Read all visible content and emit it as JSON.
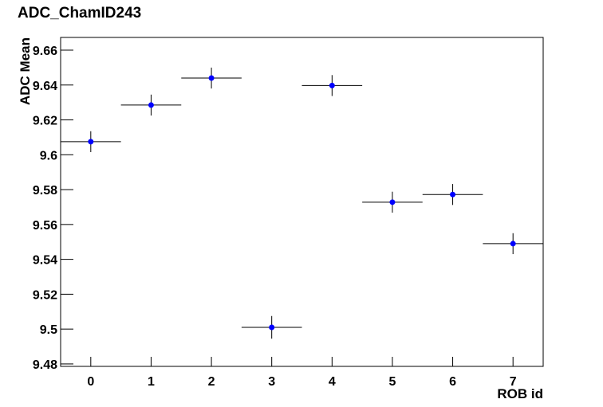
{
  "chart_data": {
    "type": "scatter",
    "title": "ADC_ChamID243",
    "x_label": "ROB id",
    "y_label": "ADC Mean",
    "x": [
      0,
      1,
      2,
      3,
      4,
      5,
      6,
      7
    ],
    "series": [
      {
        "color": "#0000ff",
        "values": [
          9.6075,
          9.6285,
          9.644,
          9.501,
          9.6397,
          9.5728,
          9.5772,
          9.549
        ],
        "errors": [
          0.006,
          0.006,
          0.006,
          0.0065,
          0.006,
          0.006,
          0.006,
          0.006
        ],
        "xerror": 0.5
      }
    ],
    "xlim": [
      -0.5,
      7.5
    ],
    "xticks": [
      0,
      1,
      2,
      3,
      4,
      5,
      6,
      7
    ],
    "ylim": [
      9.4786,
      9.6673
    ],
    "yticks": [
      9.48,
      9.5,
      9.52,
      9.54,
      9.56,
      9.58,
      9.6,
      9.62,
      9.64,
      9.66
    ]
  }
}
